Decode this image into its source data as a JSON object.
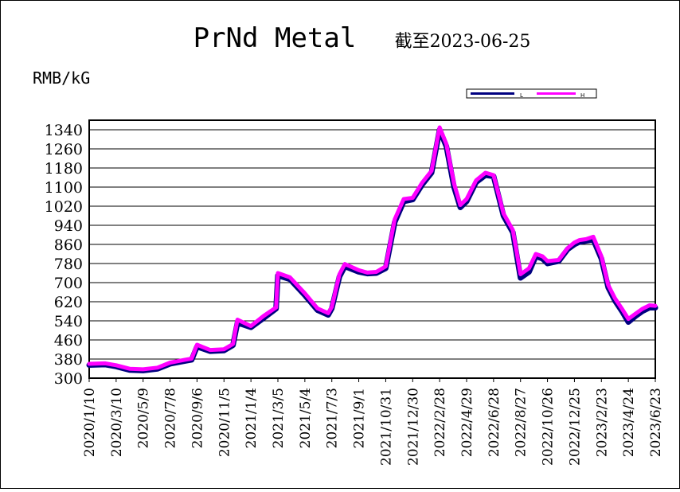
{
  "chart_data": {
    "type": "line",
    "title": "PrNd Metal",
    "subtitle": "截至2023-06-25",
    "ylabel": "RMB/kG",
    "xlabel": "",
    "ylim": [
      300,
      1380
    ],
    "yticks": [
      300,
      380,
      460,
      540,
      620,
      700,
      780,
      860,
      940,
      1020,
      1100,
      1180,
      1260,
      1340
    ],
    "xticks": [
      "2020/1/10",
      "2020/3/10",
      "2020/5/9",
      "2020/7/8",
      "2020/9/6",
      "2020/11/5",
      "2021/1/4",
      "2021/3/5",
      "2021/5/4",
      "2021/7/3",
      "2021/9/1",
      "2021/10/31",
      "2021/12/30",
      "2022/2/28",
      "2022/4/29",
      "2022/6/28",
      "2022/8/27",
      "2022/10/26",
      "2022/12/25",
      "2023/2/23",
      "2023/4/24",
      "2023/6/23"
    ],
    "grid": true,
    "legend_position": "top-right",
    "series": [
      {
        "name": "L",
        "color": "#000080",
        "x": [
          "2020/1/10",
          "2020/2/15",
          "2020/3/10",
          "2020/4/10",
          "2020/5/9",
          "2020/6/10",
          "2020/7/8",
          "2020/8/10",
          "2020/8/25",
          "2020/9/6",
          "2020/10/5",
          "2020/11/5",
          "2020/11/25",
          "2020/12/5",
          "2021/1/4",
          "2021/2/1",
          "2021/3/1",
          "2021/3/5",
          "2021/4/1",
          "2021/5/4",
          "2021/6/1",
          "2021/6/25",
          "2021/7/3",
          "2021/7/20",
          "2021/8/1",
          "2021/9/1",
          "2021/9/20",
          "2021/10/10",
          "2021/10/31",
          "2021/11/20",
          "2021/12/10",
          "2021/12/30",
          "2022/1/20",
          "2022/2/10",
          "2022/2/28",
          "2022/3/15",
          "2022/4/1",
          "2022/4/15",
          "2022/4/29",
          "2022/5/20",
          "2022/6/10",
          "2022/6/28",
          "2022/7/20",
          "2022/8/10",
          "2022/8/27",
          "2022/9/15",
          "2022/9/30",
          "2022/10/15",
          "2022/10/26",
          "2022/11/20",
          "2022/12/10",
          "2022/12/25",
          "2023/1/5",
          "2023/1/20",
          "2023/2/5",
          "2023/2/23",
          "2023/3/10",
          "2023/3/25",
          "2023/4/10",
          "2023/4/24",
          "2023/5/10",
          "2023/5/25",
          "2023/6/10",
          "2023/6/23"
        ],
        "values": [
          355,
          357,
          349,
          334,
          332,
          339,
          360,
          372,
          377,
          432,
          413,
          416,
          438,
          532,
          513,
          551,
          591,
          730,
          714,
          647,
          585,
          565,
          592,
          725,
          768,
          745,
          738,
          740,
          760,
          953,
          1040,
          1048,
          1110,
          1160,
          1340,
          1270,
          1100,
          1015,
          1040,
          1120,
          1150,
          1145,
          980,
          910,
          720,
          745,
          810,
          800,
          780,
          790,
          840,
          860,
          870,
          875,
          880,
          800,
          680,
          625,
          580,
          535,
          560,
          580,
          595,
          595
        ]
      },
      {
        "name": "H",
        "color": "#ff00ff",
        "x": [
          "2020/1/10",
          "2020/2/15",
          "2020/3/10",
          "2020/4/10",
          "2020/5/9",
          "2020/6/10",
          "2020/7/8",
          "2020/8/10",
          "2020/8/25",
          "2020/9/6",
          "2020/10/5",
          "2020/11/5",
          "2020/11/25",
          "2020/12/5",
          "2021/1/4",
          "2021/2/1",
          "2021/3/1",
          "2021/3/5",
          "2021/4/1",
          "2021/5/4",
          "2021/6/1",
          "2021/6/25",
          "2021/7/3",
          "2021/7/20",
          "2021/8/1",
          "2021/9/1",
          "2021/9/20",
          "2021/10/10",
          "2021/10/31",
          "2021/11/20",
          "2021/12/10",
          "2021/12/30",
          "2022/1/20",
          "2022/2/10",
          "2022/2/28",
          "2022/3/15",
          "2022/4/1",
          "2022/4/15",
          "2022/4/29",
          "2022/5/20",
          "2022/6/10",
          "2022/6/28",
          "2022/7/20",
          "2022/8/10",
          "2022/8/27",
          "2022/9/15",
          "2022/9/30",
          "2022/10/15",
          "2022/10/26",
          "2022/11/20",
          "2022/12/10",
          "2022/12/25",
          "2023/1/5",
          "2023/1/20",
          "2023/2/5",
          "2023/2/23",
          "2023/3/10",
          "2023/3/25",
          "2023/4/10",
          "2023/4/24",
          "2023/5/10",
          "2023/5/25",
          "2023/6/10",
          "2023/6/23"
        ],
        "values": [
          360,
          362,
          354,
          339,
          337,
          344,
          365,
          377,
          382,
          440,
          418,
          421,
          443,
          545,
          518,
          560,
          596,
          740,
          722,
          655,
          592,
          572,
          598,
          735,
          778,
          752,
          742,
          745,
          768,
          965,
          1050,
          1055,
          1118,
          1168,
          1350,
          1280,
          1115,
          1025,
          1050,
          1128,
          1160,
          1150,
          990,
          920,
          735,
          760,
          820,
          810,
          790,
          795,
          845,
          868,
          878,
          882,
          892,
          810,
          690,
          635,
          590,
          548,
          570,
          590,
          605,
          603
        ]
      }
    ]
  }
}
